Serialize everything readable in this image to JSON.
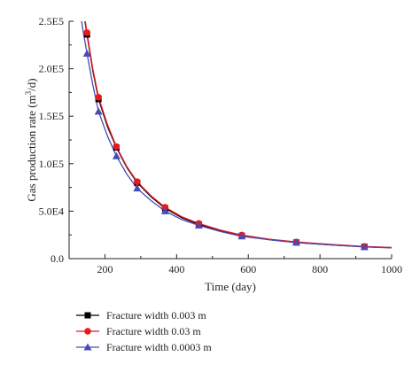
{
  "chart_data": {
    "type": "line",
    "title": "",
    "xlabel": "Time (day)",
    "ylabel_main": "Gas production rate (m",
    "ylabel_sup": "3",
    "ylabel_tail": "/d)",
    "xlim": [
      100,
      1000
    ],
    "ylim": [
      0,
      250000
    ],
    "x_ticks": [
      200,
      400,
      600,
      800,
      1000
    ],
    "x_tick_labels": [
      "200",
      "400",
      "600",
      "800",
      "1000"
    ],
    "y_ticks": [
      0,
      50000,
      100000,
      150000,
      200000,
      250000
    ],
    "y_tick_labels": [
      "0.0",
      "5.0E4",
      "1.0E5",
      "1.5E5",
      "2.0E5",
      "2.5E5"
    ],
    "grid": false,
    "legend_position": "bottom",
    "series": [
      {
        "name": "Fracture width 0.003 m",
        "color": "#000000",
        "marker": "square",
        "x": [
          150,
          182,
          232,
          290,
          368,
          462,
          582,
          734,
          924
        ],
        "y": [
          236000,
          168000,
          117000,
          80000,
          53000,
          36000,
          24000,
          17000,
          12500
        ],
        "curve_x": [
          120,
          135,
          150,
          166,
          182,
          207,
          232,
          261,
          290,
          329,
          368,
          415,
          462,
          522,
          582,
          658,
          734,
          829,
          924,
          1000
        ],
        "curve_y": [
          320000,
          272000,
          236000,
          198000,
          168000,
          139000,
          117000,
          96000,
          80000,
          65000,
          53000,
          43000,
          36000,
          29000,
          24000,
          20000,
          17000,
          14500,
          12500,
          11500
        ]
      },
      {
        "name": "Fracture width 0.03 m",
        "color": "#e8191e",
        "marker": "circle",
        "x": [
          150,
          182,
          232,
          290,
          368,
          462,
          582,
          734,
          924
        ],
        "y": [
          238000,
          170000,
          118000,
          81000,
          54000,
          37000,
          24800,
          17500,
          12800
        ],
        "curve_x": [
          120,
          135,
          150,
          166,
          182,
          207,
          232,
          261,
          290,
          329,
          368,
          415,
          462,
          522,
          582,
          658,
          734,
          829,
          924,
          1000
        ],
        "curve_y": [
          322000,
          274000,
          238000,
          200000,
          170000,
          141000,
          118000,
          97000,
          81000,
          66000,
          54000,
          44000,
          37000,
          30000,
          24800,
          20500,
          17500,
          15000,
          12800,
          11800
        ]
      },
      {
        "name": "Fracture width 0.0003 m",
        "color": "#4a4ab5",
        "marker": "triangle",
        "x": [
          150,
          182,
          232,
          290,
          368,
          462,
          582,
          734,
          924
        ],
        "y": [
          216000,
          155000,
          108000,
          74000,
          50000,
          35000,
          23500,
          17000,
          12300
        ],
        "curve_x": [
          125,
          138,
          150,
          166,
          182,
          207,
          232,
          261,
          290,
          329,
          368,
          415,
          462,
          522,
          582,
          658,
          734,
          829,
          924,
          1000
        ],
        "curve_y": [
          275000,
          242000,
          216000,
          183000,
          155000,
          129000,
          108000,
          89000,
          74000,
          61000,
          50000,
          41000,
          35000,
          28500,
          23500,
          20000,
          17000,
          14500,
          12300,
          11300
        ]
      }
    ]
  }
}
